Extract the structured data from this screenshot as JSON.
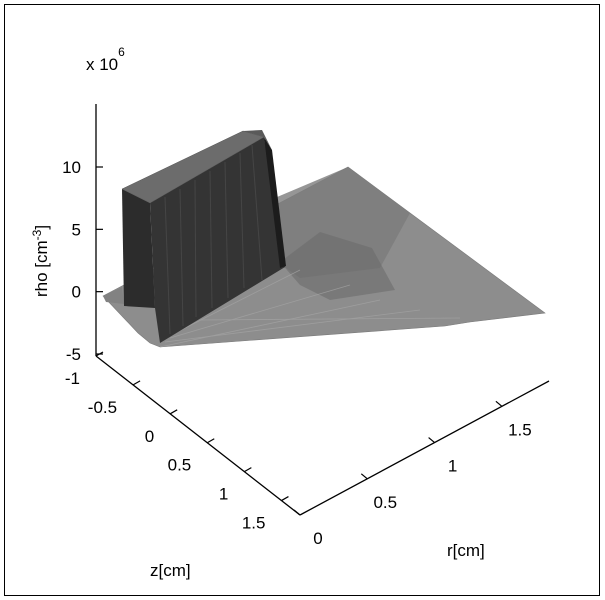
{
  "chart_data": {
    "type": "surface3d",
    "title": "",
    "zlabel": "rho [cm",
    "zlabel_exponent": "-3",
    "zlabel_close": "]",
    "xlabel": "r[cm]",
    "ylabel": "z[cm]",
    "scale_factor_base": "x 10",
    "scale_factor_exponent": "6",
    "xlim": [
      0,
      1.5
    ],
    "ylim": [
      -1,
      1.5
    ],
    "zlim": [
      -5,
      13
    ],
    "x_ticks": [
      "0",
      "0.5",
      "1",
      "1.5"
    ],
    "y_ticks": [
      "-1",
      "-0.5",
      "0",
      "0.5",
      "1",
      "1.5"
    ],
    "z_ticks": [
      "10",
      "5",
      "0",
      "-5"
    ],
    "surface": {
      "base_level": -1,
      "plateau_level": 11,
      "plateau_r_range": [
        0,
        0.3
      ],
      "plateau_z_range": [
        -1,
        0.15
      ],
      "sheet_r_range": [
        0,
        1.5
      ],
      "sheet_z_range": [
        -1,
        1.3
      ]
    },
    "colors": {
      "plateau_top": "#6f6f6f",
      "wall_dark": "#2b2b2b",
      "wall_mid": "#3d3d3d",
      "sheet": "#8e8e8e",
      "sheet_shadow": "#6d6d6d"
    }
  }
}
